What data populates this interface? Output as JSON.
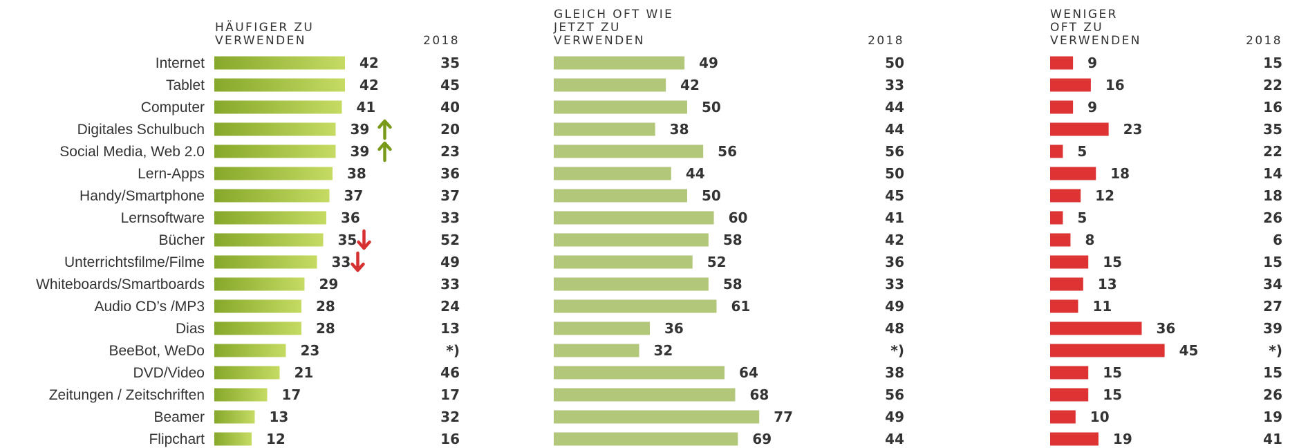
{
  "chart_data": {
    "type": "bar",
    "categories": [
      "Internet",
      "Tablet",
      "Computer",
      "Digitales Schulbuch",
      "Social Media, Web 2.0",
      "Lern-Apps",
      "Handy/Smartphone",
      "Lernsoftware",
      "Bücher",
      "Unterrichtsfilme/Filme",
      "Whiteboards/Smartboards",
      "Audio CD’s /MP3",
      "Dias",
      "BeeBot, WeDo",
      "DVD/Video",
      "Zeitungen / Zeitschriften",
      "Beamer",
      "Flipchart"
    ],
    "compare_label": "2018",
    "missing_marker": "*)",
    "series": [
      {
        "title_lines": [
          "HÄUFIGER ZU",
          "VERWENDEN"
        ],
        "values": [
          42,
          42,
          41,
          39,
          39,
          38,
          37,
          36,
          35,
          33,
          29,
          28,
          28,
          23,
          21,
          17,
          13,
          12
        ],
        "values_2018": [
          35,
          45,
          40,
          20,
          23,
          36,
          37,
          33,
          52,
          49,
          33,
          24,
          13,
          null,
          46,
          17,
          32,
          16
        ],
        "color_from": "#86a82a",
        "color_to": "#c5db63",
        "trend": [
          "",
          "",
          "",
          "up",
          "up",
          "",
          "",
          "",
          "down",
          "down",
          "",
          "",
          "",
          "",
          "",
          "",
          "",
          ""
        ]
      },
      {
        "title_lines": [
          "GLEICH OFT WIE",
          "JETZT ZU",
          "VERWENDEN"
        ],
        "values": [
          49,
          42,
          50,
          38,
          56,
          44,
          50,
          60,
          58,
          52,
          58,
          61,
          36,
          32,
          64,
          68,
          77,
          69
        ],
        "values_2018": [
          50,
          33,
          44,
          44,
          56,
          50,
          45,
          41,
          42,
          36,
          33,
          49,
          48,
          null,
          38,
          56,
          49,
          44
        ],
        "color": "#b2c77a"
      },
      {
        "title_lines": [
          "WENIGER",
          "OFT ZU",
          "VERWENDEN"
        ],
        "values": [
          9,
          16,
          9,
          23,
          5,
          18,
          12,
          5,
          8,
          15,
          13,
          11,
          36,
          45,
          15,
          15,
          10,
          19
        ],
        "values_2018": [
          15,
          22,
          16,
          35,
          22,
          14,
          18,
          26,
          6,
          15,
          34,
          27,
          39,
          null,
          15,
          26,
          19,
          41
        ],
        "color": "#dd3333"
      }
    ],
    "colors": {
      "text": "#333333",
      "arrow_up": "#7a9a1c",
      "arrow_down": "#d63030"
    }
  }
}
